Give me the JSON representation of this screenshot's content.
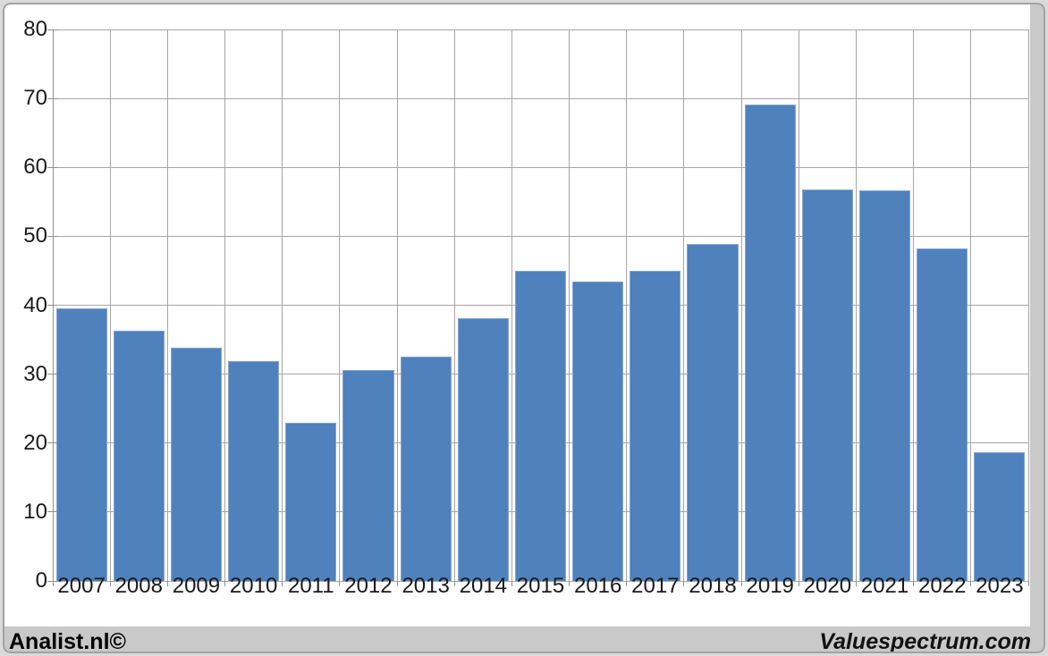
{
  "chart_data": {
    "type": "bar",
    "categories": [
      "2007",
      "2008",
      "2009",
      "2010",
      "2011",
      "2012",
      "2013",
      "2014",
      "2015",
      "2016",
      "2017",
      "2018",
      "2019",
      "2020",
      "2021",
      "2022",
      "2023"
    ],
    "values": [
      39.5,
      36.3,
      33.9,
      31.9,
      23.0,
      30.6,
      32.5,
      38.1,
      45.0,
      43.5,
      45.0,
      48.9,
      69.1,
      56.8,
      56.7,
      48.3,
      18.7
    ],
    "title": "",
    "xlabel": "",
    "ylabel": "",
    "ylim": [
      0,
      80
    ],
    "yticks": [
      0,
      10,
      20,
      30,
      40,
      50,
      60,
      70,
      80
    ],
    "grid": true,
    "legend": false,
    "bar_color": "#4f81bd",
    "bar_border_color": "#84a7d1",
    "gridline_color": "#a6a6a6",
    "axis_color": "#8f8f8f"
  },
  "footer": {
    "left_text": "Analist.nl©",
    "right_text": "Valuespectrum.com"
  },
  "colors": {
    "page_background": "#dadada",
    "frame_background": "#c9c9c9",
    "frame_border": "#a2a2a2",
    "panel_background": "#ffffff",
    "text": "#1a1a1a"
  }
}
